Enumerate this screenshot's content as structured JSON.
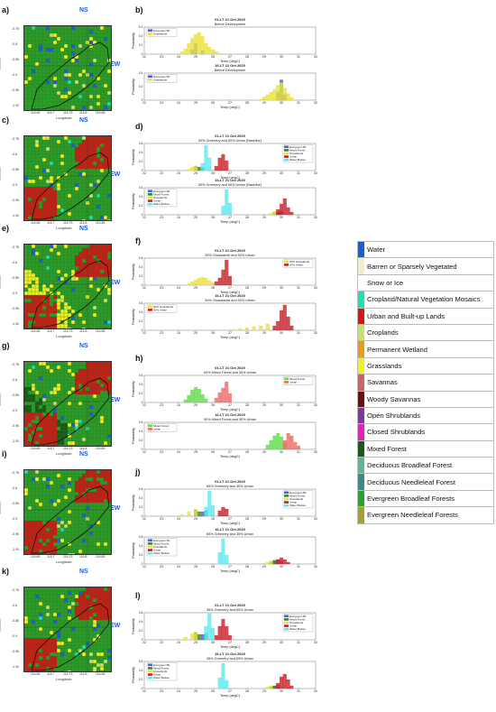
{
  "panels": {
    "maps": [
      {
        "letter": "a)",
        "ns": "NS",
        "ew": "EW",
        "variant": "base"
      },
      {
        "letter": "c)",
        "ns": "NS",
        "ew": "EW",
        "variant": "urban"
      },
      {
        "letter": "e)",
        "ns": "NS",
        "ew": "EW",
        "variant": "grass"
      },
      {
        "letter": "g)",
        "ns": "NS",
        "ew": "EW",
        "variant": "forest"
      },
      {
        "letter": "i)",
        "ns": "NS",
        "ew": "EW",
        "variant": "greenery"
      },
      {
        "letter": "k)",
        "ns": "NS",
        "ew": "EW",
        "variant": "greenery2"
      }
    ],
    "axis_labels": {
      "latitude": "Latitude",
      "longitude": "Longitude"
    },
    "lon_ticks": [
      "116.65",
      "116.7",
      "116.75",
      "116.8",
      "116.85"
    ],
    "lat_ticks": [
      "-0.75",
      "-0.8",
      "-0.85",
      "-0.9",
      "-0.95",
      "-1.00"
    ]
  },
  "chart_data": [
    {
      "panel": "b)",
      "type": "bar",
      "title": "01-LT 21 Oct 2020",
      "subtitle": "Before Development",
      "xlabel": "Temp (degC)",
      "ylabel": "Probability",
      "xlim": [
        22,
        32
      ],
      "ylim": [
        0,
        0.3
      ],
      "yticks": [
        "0",
        "0.1",
        "0.2",
        "0.3"
      ],
      "series": [
        {
          "name": "Evergreen BF",
          "color": "#4e5fd0",
          "x": [
            24.8,
            25.0,
            25.4
          ],
          "values": [
            0.05,
            0.12,
            0.04
          ]
        },
        {
          "name": "Grasslands",
          "color": "#e8e23a",
          "x": [
            24.2,
            24.4,
            24.6,
            24.8,
            25.0,
            25.2,
            25.4,
            25.6,
            25.8,
            26.0,
            26.2,
            26.4
          ],
          "values": [
            0.03,
            0.06,
            0.12,
            0.18,
            0.22,
            0.24,
            0.2,
            0.12,
            0.08,
            0.05,
            0.03,
            0.01
          ]
        }
      ]
    },
    {
      "panel": "",
      "type": "bar",
      "title": "16-LT 21 Oct 2020",
      "subtitle": "Before Development",
      "xlabel": "Temp (degC)",
      "ylabel": "Probability",
      "xlim": [
        22,
        32
      ],
      "ylim": [
        0,
        0.4
      ],
      "yticks": [
        "0",
        "0.2",
        "0.4"
      ],
      "series": [
        {
          "name": "Evergreen BF",
          "color": "#4e5fd0",
          "x": [
            29.8,
            30.0,
            30.2
          ],
          "values": [
            0.12,
            0.3,
            0.08
          ]
        },
        {
          "name": "Grasslands",
          "color": "#e8e23a",
          "x": [
            28.8,
            29.0,
            29.2,
            29.4,
            29.6,
            29.8,
            30.0,
            30.2,
            30.4,
            30.6
          ],
          "values": [
            0.02,
            0.05,
            0.08,
            0.12,
            0.16,
            0.22,
            0.26,
            0.18,
            0.1,
            0.04
          ]
        }
      ]
    },
    {
      "panel": "d)",
      "type": "bar",
      "title": "01-LT 21 Oct 2020",
      "subtitle": "50% Greenery and 50% Urban (Baseline)",
      "xlabel": "Temp (degC)",
      "ylabel": "Probability",
      "xlim": [
        22,
        32
      ],
      "ylim": [
        0,
        0.6
      ],
      "yticks": [
        "0",
        "0.2",
        "0.4",
        "0.6"
      ],
      "series": [
        {
          "name": "Evergreen BF",
          "color": "#4e5fd0",
          "x": [
            25.0,
            25.4
          ],
          "values": [
            0.1,
            0.06
          ]
        },
        {
          "name": "Mixed Forest",
          "color": "#2f8a2a",
          "x": [
            25.2,
            25.4
          ],
          "values": [
            0.08,
            0.05
          ]
        },
        {
          "name": "Grasslands",
          "color": "#e8e23a",
          "x": [
            24.6,
            24.8,
            25.0
          ],
          "values": [
            0.04,
            0.08,
            0.1
          ]
        },
        {
          "name": "Urban",
          "color": "#c8202a",
          "x": [
            26.2,
            26.4,
            26.6,
            26.8
          ],
          "values": [
            0.1,
            0.28,
            0.36,
            0.22
          ]
        },
        {
          "name": "Water Bodies",
          "color": "#5fe6f0",
          "x": [
            25.4,
            25.6,
            25.8
          ],
          "values": [
            0.16,
            0.56,
            0.28
          ]
        }
      ]
    },
    {
      "panel": "",
      "type": "bar",
      "title": "16-LT 21 Oct 2020",
      "subtitle": "50% Greenery and 50% Urban (Baseline)",
      "xlabel": "Temp (degC)",
      "ylabel": "Probability",
      "xlim": [
        22,
        32
      ],
      "ylim": [
        0,
        0.6
      ],
      "yticks": [
        "0",
        "0.2",
        "0.4",
        "0.6"
      ],
      "series": [
        {
          "name": "Evergreen BF",
          "color": "#4e5fd0",
          "x": [
            29.8,
            30.0
          ],
          "values": [
            0.06,
            0.08
          ]
        },
        {
          "name": "Mixed Forest",
          "color": "#2f8a2a",
          "x": [
            29.6,
            29.8
          ],
          "values": [
            0.05,
            0.06
          ]
        },
        {
          "name": "Grasslands",
          "color": "#e8e23a",
          "x": [
            29.4,
            29.6
          ],
          "values": [
            0.04,
            0.08
          ]
        },
        {
          "name": "Urban",
          "color": "#c8202a",
          "x": [
            29.8,
            30.0,
            30.2,
            30.4,
            30.6
          ],
          "values": [
            0.12,
            0.24,
            0.36,
            0.16,
            0.06
          ]
        },
        {
          "name": "Water Bodies",
          "color": "#5fe6f0",
          "x": [
            26.6,
            26.8,
            27.0
          ],
          "values": [
            0.2,
            0.56,
            0.26
          ]
        }
      ]
    },
    {
      "panel": "f)",
      "type": "bar",
      "title": "01-LT 21 Oct 2020",
      "subtitle": "50% Grasslands and 50% Urban",
      "xlabel": "Temp (degC)",
      "ylabel": "Probability",
      "xlim": [
        22,
        32
      ],
      "ylim": [
        0,
        0.6
      ],
      "yticks": [
        "0",
        "0.2",
        "0.4",
        "0.6"
      ],
      "series": [
        {
          "name": "50% Grasslands",
          "color": "#e8e23a",
          "x": [
            24.6,
            24.8,
            25.0,
            25.2,
            25.4,
            25.6,
            25.8,
            26.0
          ],
          "values": [
            0.04,
            0.08,
            0.12,
            0.16,
            0.18,
            0.16,
            0.1,
            0.06
          ]
        },
        {
          "name": "50% Urban",
          "color": "#c8202a",
          "x": [
            26.2,
            26.4,
            26.6,
            26.8,
            27.0
          ],
          "values": [
            0.08,
            0.16,
            0.34,
            0.56,
            0.2
          ]
        }
      ]
    },
    {
      "panel": "",
      "type": "bar",
      "title": "16-LT 21 Oct 2020",
      "subtitle": "50% Grasslands and 50% Urban",
      "xlabel": "Temp (degC)",
      "ylabel": "Probability",
      "xlim": [
        22,
        32
      ],
      "ylim": [
        0,
        0.6
      ],
      "yticks": [
        "0",
        "0.2",
        "0.4",
        "0.6"
      ],
      "series": [
        {
          "name": "50% Grasslands",
          "color": "#e8e23a",
          "x": [
            27.2,
            27.6,
            28.0,
            28.4,
            28.8,
            29.2
          ],
          "values": [
            0.02,
            0.04,
            0.06,
            0.08,
            0.1,
            0.14
          ]
        },
        {
          "name": "50% Urban",
          "color": "#c8202a",
          "x": [
            29.6,
            29.8,
            30.0,
            30.2,
            30.4,
            30.6
          ],
          "values": [
            0.1,
            0.2,
            0.44,
            0.56,
            0.3,
            0.1
          ]
        }
      ]
    },
    {
      "panel": "h)",
      "type": "bar",
      "title": "01-LT 21 Oct 2020",
      "subtitle": "50% Mixed Forest and 50% Urban",
      "xlabel": "Temp (degC)",
      "ylabel": "Probability",
      "xlim": [
        22,
        32
      ],
      "ylim": [
        0,
        0.6
      ],
      "yticks": [
        "0",
        "0.2",
        "0.4",
        "0.6"
      ],
      "series": [
        {
          "name": "Mixed Forest",
          "color": "#5fdc4a",
          "x": [
            24.4,
            24.6,
            24.8,
            25.0,
            25.2,
            25.4,
            25.6
          ],
          "values": [
            0.06,
            0.16,
            0.28,
            0.34,
            0.3,
            0.18,
            0.08
          ]
        },
        {
          "name": "Urban",
          "color": "#ee6a6a",
          "x": [
            26.2,
            26.4,
            26.6,
            26.8,
            27.0
          ],
          "values": [
            0.1,
            0.22,
            0.32,
            0.46,
            0.2
          ]
        }
      ]
    },
    {
      "panel": "",
      "type": "bar",
      "title": "16-LT 21 Oct 2020",
      "subtitle": "50% Mixed Forest and 50% Urban",
      "xlabel": "Temp (degC)",
      "ylabel": "Probability",
      "xlim": [
        22,
        32
      ],
      "ylim": [
        0,
        0.6
      ],
      "yticks": [
        "0",
        "0.2",
        "0.4",
        "0.6"
      ],
      "series": [
        {
          "name": "Mixed Forest",
          "color": "#5fdc4a",
          "x": [
            29.2,
            29.4,
            29.6,
            29.8,
            30.0,
            30.2
          ],
          "values": [
            0.1,
            0.2,
            0.3,
            0.36,
            0.28,
            0.14
          ]
        },
        {
          "name": "Urban",
          "color": "#ee6a6a",
          "x": [
            30.2,
            30.4,
            30.6,
            30.8,
            31.0
          ],
          "values": [
            0.2,
            0.36,
            0.3,
            0.16,
            0.08
          ]
        }
      ]
    },
    {
      "panel": "j)",
      "type": "bar",
      "title": "01-LT 21 Oct 2020",
      "subtitle": "65% Greenery and 35% Urban",
      "xlabel": "Temp (degC)",
      "ylabel": "Probability",
      "xlim": [
        22,
        32
      ],
      "ylim": [
        0,
        0.6
      ],
      "yticks": [
        "0",
        "0.2",
        "0.4",
        "0.6"
      ],
      "series": [
        {
          "name": "Evergreen BF",
          "color": "#4e5fd0",
          "x": [
            25.0,
            25.4
          ],
          "values": [
            0.14,
            0.1
          ]
        },
        {
          "name": "Mixed Forest",
          "color": "#2f8a2a",
          "x": [
            25.2,
            25.6
          ],
          "values": [
            0.1,
            0.12
          ]
        },
        {
          "name": "Grasslands",
          "color": "#e8e23a",
          "x": [
            24.2,
            24.6,
            25.0
          ],
          "values": [
            0.04,
            0.1,
            0.16
          ]
        },
        {
          "name": "Urban",
          "color": "#c8202a",
          "x": [
            26.4,
            26.6,
            26.8
          ],
          "values": [
            0.12,
            0.2,
            0.16
          ]
        },
        {
          "name": "Water Bodies",
          "color": "#5fe6f0",
          "x": [
            25.6,
            25.8,
            26.0
          ],
          "values": [
            0.2,
            0.56,
            0.24
          ]
        }
      ]
    },
    {
      "panel": "",
      "type": "bar",
      "title": "16-LT 21 Oct 2020",
      "subtitle": "65% Greenery and 35% Urban",
      "xlabel": "Temp (degC)",
      "ylabel": "Probability",
      "xlim": [
        22,
        32
      ],
      "ylim": [
        0,
        0.6
      ],
      "yticks": [
        "0",
        "0.2",
        "0.4",
        "0.6"
      ],
      "series": [
        {
          "name": "Evergreen BF",
          "color": "#4e5fd0",
          "x": [
            29.6,
            29.8,
            30.0
          ],
          "values": [
            0.08,
            0.1,
            0.06
          ]
        },
        {
          "name": "Mixed Forest",
          "color": "#2f8a2a",
          "x": [
            29.4,
            29.6
          ],
          "values": [
            0.06,
            0.08
          ]
        },
        {
          "name": "Grasslands",
          "color": "#e8e23a",
          "x": [
            29.2,
            29.4
          ],
          "values": [
            0.04,
            0.06
          ]
        },
        {
          "name": "Urban",
          "color": "#c8202a",
          "x": [
            29.8,
            30.0,
            30.2,
            30.4
          ],
          "values": [
            0.1,
            0.14,
            0.1,
            0.04
          ]
        },
        {
          "name": "Water Bodies",
          "color": "#5fe6f0",
          "x": [
            26.4,
            26.6,
            26.8
          ],
          "values": [
            0.26,
            0.56,
            0.2
          ]
        }
      ]
    },
    {
      "panel": "l)",
      "type": "bar",
      "title": "01-LT 21 Oct 2020",
      "subtitle": "35% Greenery and 65% Urban",
      "xlabel": "Temp (degC)",
      "ylabel": "Probability",
      "xlim": [
        22,
        32
      ],
      "ylim": [
        0,
        0.6
      ],
      "yticks": [
        "0",
        "0.2",
        "0.4",
        "0.6"
      ],
      "series": [
        {
          "name": "Evergreen BF",
          "color": "#4e5fd0",
          "x": [
            25.0,
            25.4
          ],
          "values": [
            0.16,
            0.12
          ]
        },
        {
          "name": "Mixed Forest",
          "color": "#2f8a2a",
          "x": [
            25.2,
            25.6
          ],
          "values": [
            0.12,
            0.14
          ]
        },
        {
          "name": "Grasslands",
          "color": "#e8e23a",
          "x": [
            24.4,
            24.8,
            25.0
          ],
          "values": [
            0.06,
            0.14,
            0.18
          ]
        },
        {
          "name": "Urban",
          "color": "#c8202a",
          "x": [
            26.2,
            26.4,
            26.6,
            26.8,
            27.0
          ],
          "values": [
            0.1,
            0.3,
            0.46,
            0.3,
            0.1
          ]
        },
        {
          "name": "Water Bodies",
          "color": "#5fe6f0",
          "x": [
            25.6,
            25.8,
            26.0
          ],
          "values": [
            0.3,
            0.58,
            0.26
          ]
        }
      ]
    },
    {
      "panel": "",
      "type": "bar",
      "title": "16-LT 21 Oct 2020",
      "subtitle": "35% Greenery and 65% Urban",
      "xlabel": "Temp (degC)",
      "ylabel": "Probability",
      "xlim": [
        22,
        32
      ],
      "ylim": [
        0,
        0.6
      ],
      "yticks": [
        "0",
        "0.2",
        "0.4",
        "0.6"
      ],
      "series": [
        {
          "name": "Evergreen BF",
          "color": "#4e5fd0",
          "x": [
            29.6,
            29.8
          ],
          "values": [
            0.06,
            0.08
          ]
        },
        {
          "name": "Mixed Forest",
          "color": "#2f8a2a",
          "x": [
            29.4,
            29.6
          ],
          "values": [
            0.04,
            0.06
          ]
        },
        {
          "name": "Grasslands",
          "color": "#e8e23a",
          "x": [
            29.2,
            29.4
          ],
          "values": [
            0.04,
            0.06
          ]
        },
        {
          "name": "Urban",
          "color": "#c8202a",
          "x": [
            29.8,
            30.0,
            30.2,
            30.4,
            30.6
          ],
          "values": [
            0.12,
            0.26,
            0.32,
            0.2,
            0.06
          ]
        },
        {
          "name": "Water Bodies",
          "color": "#5fe6f0",
          "x": [
            26.4,
            26.6,
            26.8
          ],
          "values": [
            0.24,
            0.56,
            0.18
          ]
        }
      ]
    }
  ],
  "legend": [
    {
      "label": "Water",
      "color": "#1f5bd6"
    },
    {
      "label": "Barren or Sparsely Vegetated",
      "color": "#f3eec8"
    },
    {
      "label": "Snow or Ice",
      "color": "#ffffff"
    },
    {
      "label": "Cropland/Natural Vegetation Mosaics",
      "color": "#1ee0b4"
    },
    {
      "label": "Urban and Built-up Lands",
      "color": "#d01818"
    },
    {
      "label": "Croplands",
      "color": "#c8e070"
    },
    {
      "label": "Permanent Wetland",
      "color": "#e89b1a"
    },
    {
      "label": "Grasslands",
      "color": "#f5ee20"
    },
    {
      "label": "Savannas",
      "color": "#c86464"
    },
    {
      "label": "Woody Savannas",
      "color": "#6a1010"
    },
    {
      "label": "Open Shrublands",
      "color": "#7a3aa0"
    },
    {
      "label": "Closed Shrublands",
      "color": "#e820b8"
    },
    {
      "label": "Mixed Forest",
      "color": "#1a5a18"
    },
    {
      "label": "Deciduous Broadleaf Forest",
      "color": "#58b898"
    },
    {
      "label": "Deciduous Needleleaf Forest",
      "color": "#3a8a8a"
    },
    {
      "label": "Evergreen Broadleaf Forests",
      "color": "#2aa22a"
    },
    {
      "label": "Evergreen Needleleaf Forests",
      "color": "#a8a028"
    }
  ]
}
